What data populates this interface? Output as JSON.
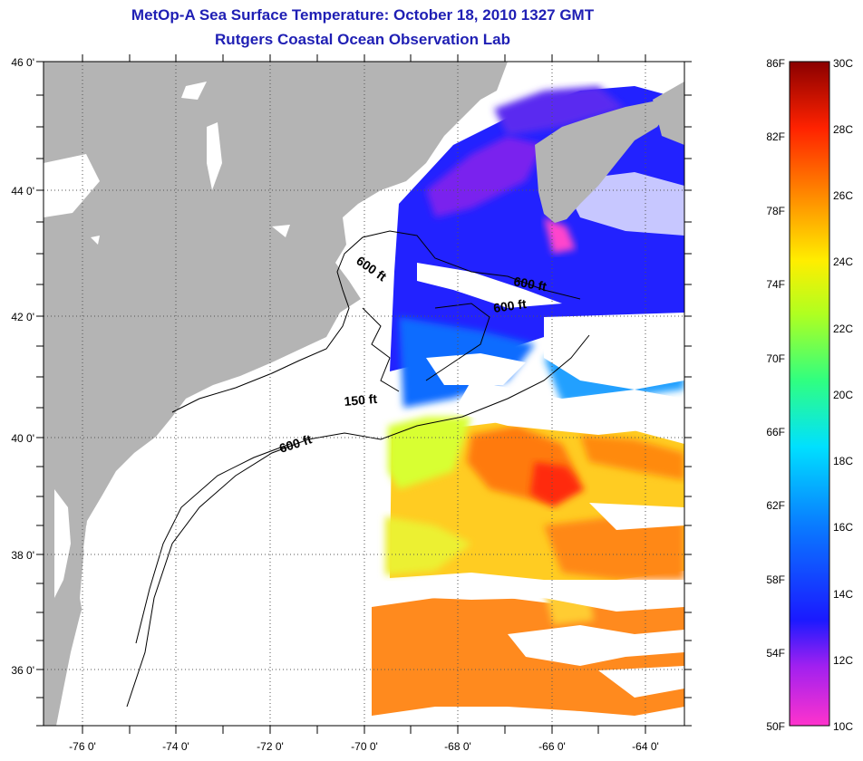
{
  "title": "MetOp-A Sea Surface Temperature:  October 18, 2010 1327 GMT",
  "subtitle": "Rutgers Coastal Ocean Observation Lab",
  "map": {
    "lon_labels": [
      "-76 0'",
      "-74 0'",
      "-72 0'",
      "-70 0'",
      "-68 0'",
      "-66 0'",
      "-64 0'"
    ],
    "lat_labels": [
      "46 0'",
      "44 0'",
      "42 0'",
      "40 0'",
      "38 0'",
      "36 0'"
    ],
    "contour_labels": [
      "600 ft",
      "600 ft",
      "600 ft",
      "150 ft",
      "600 ft"
    ],
    "colors": {
      "land": "#b4b4b4",
      "cloud": "#ffffff",
      "grid": "#555555"
    }
  },
  "colorbar": {
    "fahrenheit_labels": [
      "86F",
      "82F",
      "78F",
      "74F",
      "70F",
      "66F",
      "62F",
      "58F",
      "54F",
      "50F"
    ],
    "celsius_labels": [
      "30C",
      "28C",
      "26C",
      "24C",
      "22C",
      "20C",
      "18C",
      "16C",
      "14C",
      "12C",
      "10C"
    ],
    "range_c": [
      10,
      30
    ],
    "range_f": [
      50,
      86
    ]
  }
}
